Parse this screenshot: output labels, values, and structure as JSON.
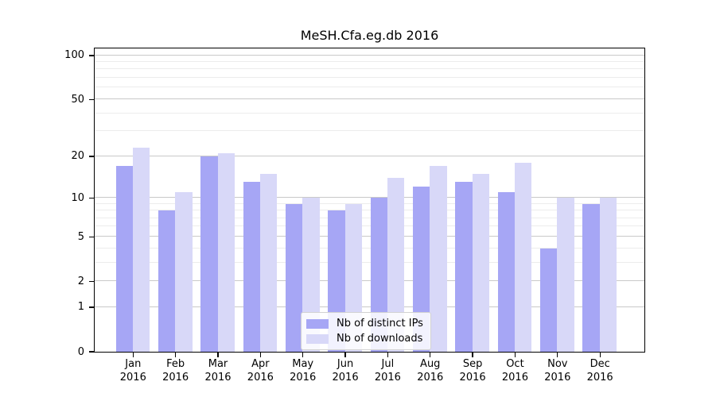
{
  "chart_data": {
    "type": "bar",
    "title": "MeSH.Cfa.eg.db 2016",
    "categories": [
      "Jan 2016",
      "Feb 2016",
      "Mar 2016",
      "Apr 2016",
      "May 2016",
      "Jun 2016",
      "Jul 2016",
      "Aug 2016",
      "Sep 2016",
      "Oct 2016",
      "Nov 2016",
      "Dec 2016"
    ],
    "series": [
      {
        "name": "Nb of distinct IPs",
        "color": "#a6a6f5",
        "values": [
          17,
          8,
          20,
          13,
          9,
          8,
          10,
          12,
          13,
          11,
          4,
          9
        ]
      },
      {
        "name": "Nb of downloads",
        "color": "#d8d8f8",
        "values": [
          23,
          11,
          21,
          15,
          10,
          9,
          14,
          17,
          15,
          18,
          10,
          10
        ]
      }
    ],
    "y_axis": {
      "scale": "log1p",
      "ticks": [
        100,
        50,
        20,
        10,
        5,
        2,
        1,
        0
      ],
      "minor_gridlines": [
        3,
        4,
        6,
        7,
        8,
        9,
        30,
        40,
        60,
        70,
        80,
        90
      ],
      "range": [
        0,
        113
      ]
    },
    "grid": true,
    "legend_position": "lower-center-right",
    "colors": {
      "major_gridline": "#c9c9c9",
      "minor_gridline": "#ececec",
      "axis": "#000000",
      "background": "#ffffff"
    }
  }
}
